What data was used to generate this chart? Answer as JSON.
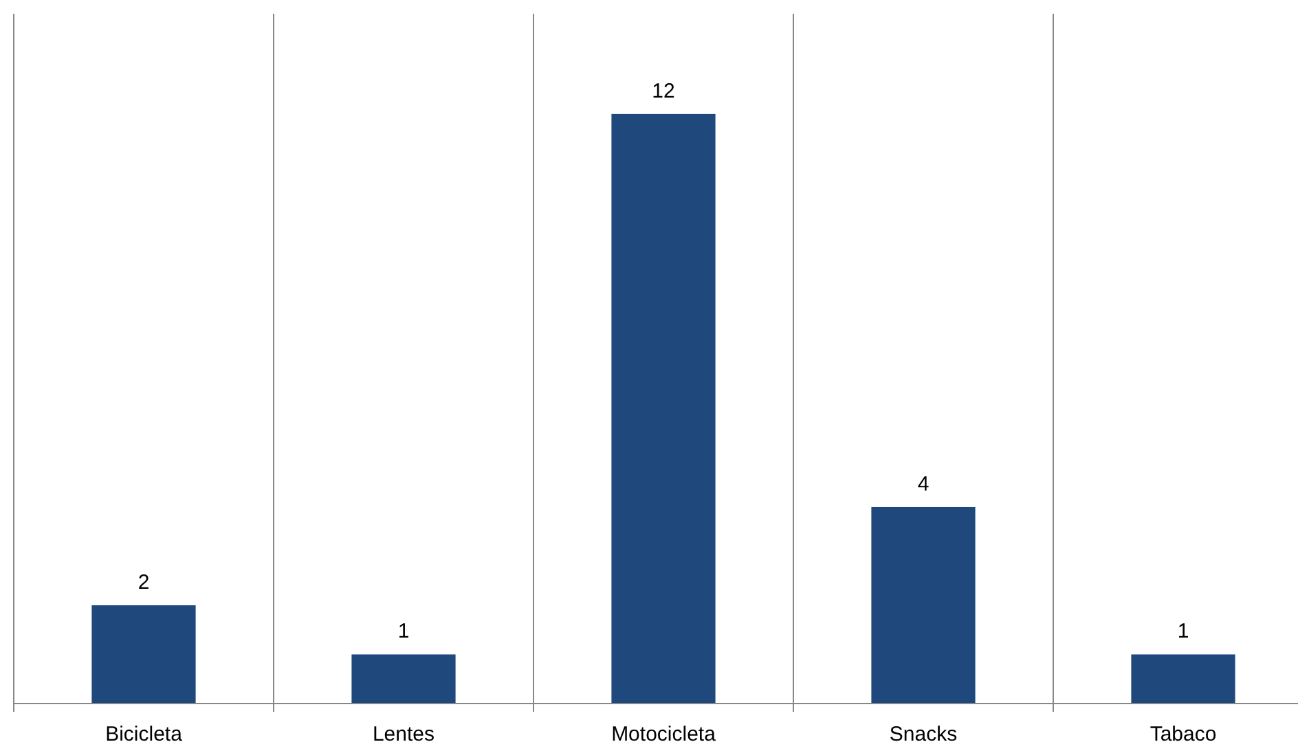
{
  "chart_data": {
    "type": "bar",
    "categories": [
      "Bicicleta",
      "Lentes",
      "Motocicleta",
      "Snacks",
      "Tabaco"
    ],
    "values": [
      2,
      1,
      12,
      4,
      1
    ],
    "color": "#1f497d",
    "data_labels": true,
    "grid": "x"
  }
}
